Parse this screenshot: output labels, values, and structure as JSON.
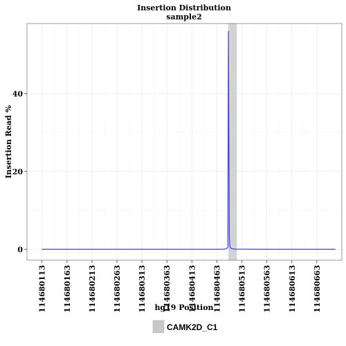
{
  "chart_data": {
    "type": "line",
    "title": "Insertion Distribution",
    "subtitle": "sample2",
    "xlabel": "hg19 Position",
    "ylabel": "Insertion Read %",
    "xlim": [
      114680083,
      114680713
    ],
    "ylim": [
      -2.8,
      58
    ],
    "x_ticks": [
      114680113,
      114680163,
      114680213,
      114680263,
      114680313,
      114680363,
      114680413,
      114680463,
      114680513,
      114680563,
      114680613,
      114680663
    ],
    "y_ticks": [
      0,
      20,
      40
    ],
    "grid": true,
    "region": {
      "name": "CAMK2D_C1",
      "start": 114680486,
      "end": 114680503,
      "color": "#d3d3d3"
    },
    "series": [
      {
        "color": "#3b3bf5",
        "x": [
          114680113,
          114680200,
          114680300,
          114680400,
          114680470,
          114680482,
          114680485,
          114680486,
          114680487,
          114680488,
          114680489,
          114680490,
          114680493,
          114680500,
          114680550,
          114680600,
          114680650,
          114680700
        ],
        "y": [
          0,
          0,
          0,
          0,
          0,
          0.1,
          0.6,
          56,
          28,
          3,
          0.8,
          0.4,
          0.15,
          0.05,
          0,
          0,
          0,
          0
        ]
      }
    ]
  },
  "legend": {
    "label": "CAMK2D_C1"
  }
}
